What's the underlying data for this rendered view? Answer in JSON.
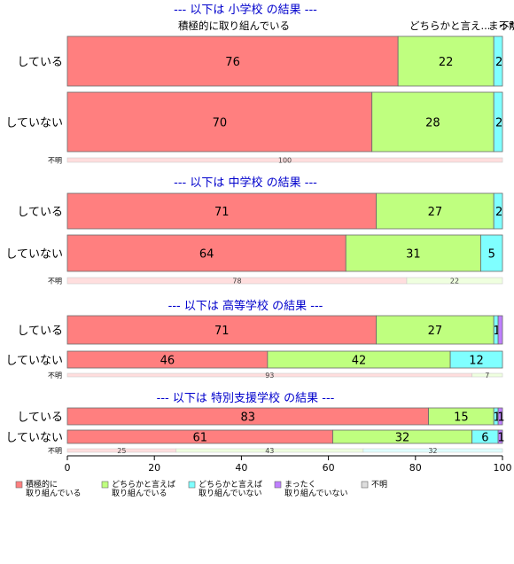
{
  "chart_data": {
    "type": "bar",
    "orientation": "horizontal",
    "stacked": true,
    "xlim": [
      0,
      100
    ],
    "xticks": [
      0,
      20,
      40,
      60,
      80,
      100
    ],
    "categories_legend": [
      {
        "label": "積極的に\n取り組んでいる",
        "color": "#ff7f7f"
      },
      {
        "label": "どちらかと言えば\n取り組んでいる",
        "color": "#bfff7f"
      },
      {
        "label": "どちらかと言えば\n取り組んでいない",
        "color": "#7fffff"
      },
      {
        "label": "まったく\n取り組んでいない",
        "color": "#bf7fff"
      },
      {
        "label": "不明",
        "color": "#dddddd"
      }
    ],
    "top_labels": [
      "積極的に取り組んでいる",
      "どちらかと言え...",
      "まった...",
      "不明"
    ],
    "sections": [
      {
        "title": "--- 以下は 小学校 の結果 ---",
        "rows": [
          {
            "label": "している",
            "values": [
              76,
              22,
              2,
              0,
              0
            ],
            "labels": [
              "76",
              "22",
              "2",
              "",
              ""
            ]
          },
          {
            "label": "していない",
            "values": [
              70,
              28,
              2,
              0,
              0
            ],
            "labels": [
              "70",
              "28",
              "2",
              "",
              ""
            ]
          },
          {
            "label": "不明",
            "values": [
              100,
              0,
              0,
              0,
              0
            ],
            "labels": [
              "100",
              "",
              "",
              "",
              ""
            ]
          }
        ]
      },
      {
        "title": "--- 以下は 中学校 の結果 ---",
        "rows": [
          {
            "label": "している",
            "values": [
              71,
              27,
              2,
              0,
              0
            ],
            "labels": [
              "71",
              "27",
              "2",
              "",
              ""
            ]
          },
          {
            "label": "していない",
            "values": [
              64,
              31,
              5,
              0,
              0
            ],
            "labels": [
              "64",
              "31",
              "5",
              "",
              ""
            ]
          },
          {
            "label": "不明",
            "values": [
              78,
              22,
              0,
              0,
              0
            ],
            "labels": [
              "78",
              "22",
              "",
              "",
              ""
            ]
          }
        ]
      },
      {
        "title": "--- 以下は 高等学校 の結果 ---",
        "rows": [
          {
            "label": "している",
            "values": [
              71,
              27,
              1,
              1,
              0
            ],
            "labels": [
              "71",
              "27",
              "1",
              "",
              ""
            ]
          },
          {
            "label": "していない",
            "values": [
              46,
              42,
              12,
              0,
              0
            ],
            "labels": [
              "46",
              "42",
              "12",
              "",
              ""
            ]
          },
          {
            "label": "不明",
            "values": [
              93,
              7,
              0,
              0,
              0
            ],
            "labels": [
              "93",
              "7",
              "",
              "",
              ""
            ]
          }
        ]
      },
      {
        "title": "--- 以下は 特別支援学校 の結果 ---",
        "rows": [
          {
            "label": "している",
            "values": [
              83,
              15,
              1,
              1,
              0
            ],
            "labels": [
              "83",
              "15",
              "1",
              "1",
              ""
            ]
          },
          {
            "label": "していない",
            "values": [
              61,
              32,
              6,
              1,
              0
            ],
            "labels": [
              "61",
              "32",
              "6",
              "1",
              ""
            ]
          },
          {
            "label": "不明",
            "values": [
              25,
              43,
              32,
              0,
              0
            ],
            "labels": [
              "25",
              "43",
              "32",
              "",
              ""
            ]
          }
        ]
      }
    ]
  }
}
